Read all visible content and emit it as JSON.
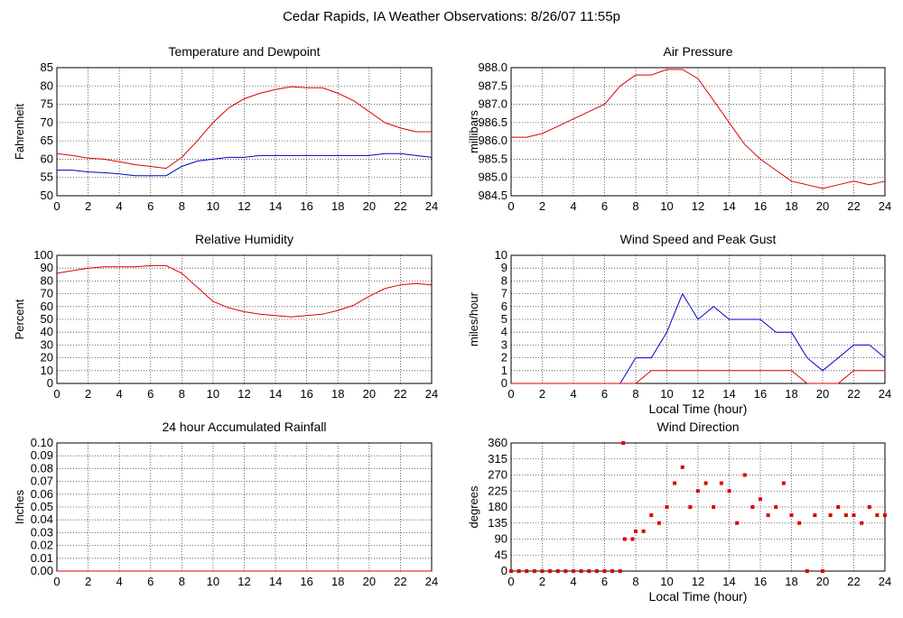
{
  "title": "Cedar Rapids, IA Weather Observations: 8/26/07 11:55p",
  "chart_data": [
    {
      "type": "line",
      "title": "Temperature and Dewpoint",
      "ylabel": "Fahrenheit",
      "x": [
        0,
        1,
        2,
        3,
        4,
        5,
        6,
        7,
        8,
        9,
        10,
        11,
        12,
        13,
        14,
        15,
        16,
        17,
        18,
        19,
        20,
        21,
        22,
        23,
        24
      ],
      "series": [
        {
          "color": "#dd0000",
          "values": [
            61.5,
            61,
            60.3,
            60,
            59.3,
            58.5,
            58,
            57.5,
            60.5,
            65,
            70,
            74,
            76.5,
            78,
            79,
            79.8,
            79.5,
            79.5,
            78,
            76,
            73,
            70,
            68.5,
            67.5,
            67.5
          ]
        },
        {
          "color": "#0000cc",
          "values": [
            57,
            57,
            56.5,
            56.3,
            56,
            55.5,
            55.5,
            55.5,
            58,
            59.5,
            60,
            60.5,
            60.5,
            61,
            61,
            61,
            61,
            61,
            61,
            61,
            61,
            61.5,
            61.5,
            61,
            60.5
          ]
        }
      ],
      "xlim": [
        0,
        24
      ],
      "ylim": [
        50,
        85
      ],
      "xticks": [
        0,
        2,
        4,
        6,
        8,
        10,
        12,
        14,
        16,
        18,
        20,
        22,
        24
      ],
      "yticks": [
        50,
        55,
        60,
        65,
        70,
        75,
        80,
        85
      ],
      "grid": true
    },
    {
      "type": "line",
      "title": "Air Pressure",
      "ylabel": "millibars",
      "x": [
        0,
        1,
        2,
        3,
        4,
        5,
        6,
        7,
        8,
        9,
        10,
        11,
        12,
        13,
        14,
        15,
        16,
        17,
        18,
        19,
        20,
        21,
        22,
        23,
        24
      ],
      "series": [
        {
          "color": "#dd0000",
          "values": [
            986.1,
            986.1,
            986.2,
            986.4,
            986.6,
            986.8,
            987.0,
            987.5,
            987.8,
            987.8,
            987.95,
            987.95,
            987.7,
            987.1,
            986.5,
            985.9,
            985.5,
            985.2,
            984.9,
            984.8,
            984.7,
            984.8,
            984.9,
            984.8,
            984.9
          ]
        }
      ],
      "xlim": [
        0,
        24
      ],
      "ylim": [
        984.5,
        988
      ],
      "xticks": [
        0,
        2,
        4,
        6,
        8,
        10,
        12,
        14,
        16,
        18,
        20,
        22,
        24
      ],
      "yticks": [
        984.5,
        {
          "value": 985,
          "label": "985.0"
        },
        985.5,
        {
          "value": 986,
          "label": "986.0"
        },
        986.5,
        {
          "value": 987,
          "label": "987.0"
        },
        987.5,
        {
          "value": 988,
          "label": "988.0"
        }
      ],
      "grid": true
    },
    {
      "type": "line",
      "title": "Relative Humidity",
      "ylabel": "Percent",
      "x": [
        0,
        1,
        2,
        3,
        4,
        5,
        6,
        7,
        8,
        9,
        10,
        11,
        12,
        13,
        14,
        15,
        16,
        17,
        18,
        19,
        20,
        21,
        22,
        23,
        24
      ],
      "series": [
        {
          "color": "#dd0000",
          "values": [
            86,
            88,
            90,
            91,
            91,
            91,
            92,
            92,
            86,
            75,
            64,
            59,
            56,
            54,
            53,
            52,
            53,
            54,
            57,
            61,
            68,
            74,
            77,
            78,
            77
          ]
        }
      ],
      "xlim": [
        0,
        24
      ],
      "ylim": [
        0,
        100
      ],
      "xticks": [
        0,
        2,
        4,
        6,
        8,
        10,
        12,
        14,
        16,
        18,
        20,
        22,
        24
      ],
      "yticks": [
        0,
        10,
        20,
        30,
        40,
        50,
        60,
        70,
        80,
        90,
        100
      ],
      "grid": true
    },
    {
      "type": "line",
      "title": "Wind Speed and Peak Gust",
      "ylabel": "miles/hour",
      "xlabel": "Local Time (hour)",
      "x": [
        0,
        1,
        2,
        3,
        4,
        5,
        6,
        7,
        8,
        9,
        10,
        11,
        12,
        13,
        14,
        15,
        16,
        17,
        18,
        19,
        20,
        21,
        22,
        23,
        24
      ],
      "series": [
        {
          "color": "#0000cc",
          "values": [
            0,
            0,
            0,
            0,
            0,
            0,
            0,
            0,
            2,
            2,
            4,
            7,
            5,
            6,
            5,
            5,
            5,
            4,
            4,
            2,
            1,
            2,
            3,
            3,
            2
          ]
        },
        {
          "color": "#dd0000",
          "values": [
            0,
            0,
            0,
            0,
            0,
            0,
            0,
            0,
            0,
            1,
            1,
            1,
            1,
            1,
            1,
            1,
            1,
            1,
            1,
            0,
            0,
            0,
            1,
            1,
            1
          ]
        }
      ],
      "xlim": [
        0,
        24
      ],
      "ylim": [
        0,
        10
      ],
      "xticks": [
        0,
        2,
        4,
        6,
        8,
        10,
        12,
        14,
        16,
        18,
        20,
        22,
        24
      ],
      "yticks": [
        0,
        1,
        2,
        3,
        4,
        5,
        6,
        7,
        8,
        9,
        10
      ],
      "grid": true
    },
    {
      "type": "line",
      "title": "24 hour Accumulated Rainfall",
      "ylabel": "Inches",
      "x": [
        0,
        24
      ],
      "series": [
        {
          "color": "#dd0000",
          "values": [
            0,
            0
          ]
        }
      ],
      "xlim": [
        0,
        24
      ],
      "ylim": [
        0,
        0.1
      ],
      "xticks": [
        0,
        2,
        4,
        6,
        8,
        10,
        12,
        14,
        16,
        18,
        20,
        22,
        24
      ],
      "yticks": [
        {
          "value": 0,
          "label": "0.00"
        },
        0.01,
        0.02,
        0.03,
        0.04,
        0.05,
        0.06,
        0.07,
        0.08,
        0.09,
        {
          "value": 0.1,
          "label": "0.10"
        }
      ],
      "grid": true
    },
    {
      "type": "scatter",
      "title": "Wind Direction",
      "ylabel": "degrees",
      "xlabel": "Local Time (hour)",
      "x": [
        0,
        0.5,
        1,
        1.5,
        2,
        2.5,
        3,
        3.5,
        4,
        4.5,
        5,
        5.5,
        6,
        6.5,
        7,
        7.2,
        7.3,
        7.8,
        8,
        8.5,
        9,
        9.5,
        10,
        10.5,
        11,
        11.5,
        12,
        12.5,
        13,
        13.5,
        14,
        14.5,
        15,
        15.5,
        16,
        16.5,
        17,
        17.5,
        18,
        18.5,
        19,
        19.5,
        20,
        20.5,
        21,
        21.5,
        22,
        22.5,
        23,
        23.5,
        24
      ],
      "series": [
        {
          "color": "#dd0000",
          "values": [
            0,
            0,
            0,
            0,
            0,
            0,
            0,
            0,
            0,
            0,
            0,
            0,
            0,
            0,
            0,
            360,
            90,
            90,
            112,
            112,
            157,
            135,
            180,
            247,
            292,
            180,
            225,
            247,
            180,
            247,
            225,
            135,
            270,
            180,
            202,
            157,
            180,
            247,
            157,
            135,
            0,
            157,
            0,
            157,
            180,
            157,
            157,
            135,
            180,
            157,
            157
          ]
        }
      ],
      "xlim": [
        0,
        24
      ],
      "ylim": [
        0,
        360
      ],
      "xticks": [
        0,
        2,
        4,
        6,
        8,
        10,
        12,
        14,
        16,
        18,
        20,
        22,
        24
      ],
      "yticks": [
        0,
        45,
        90,
        135,
        180,
        225,
        270,
        315,
        360
      ],
      "grid": true
    }
  ]
}
